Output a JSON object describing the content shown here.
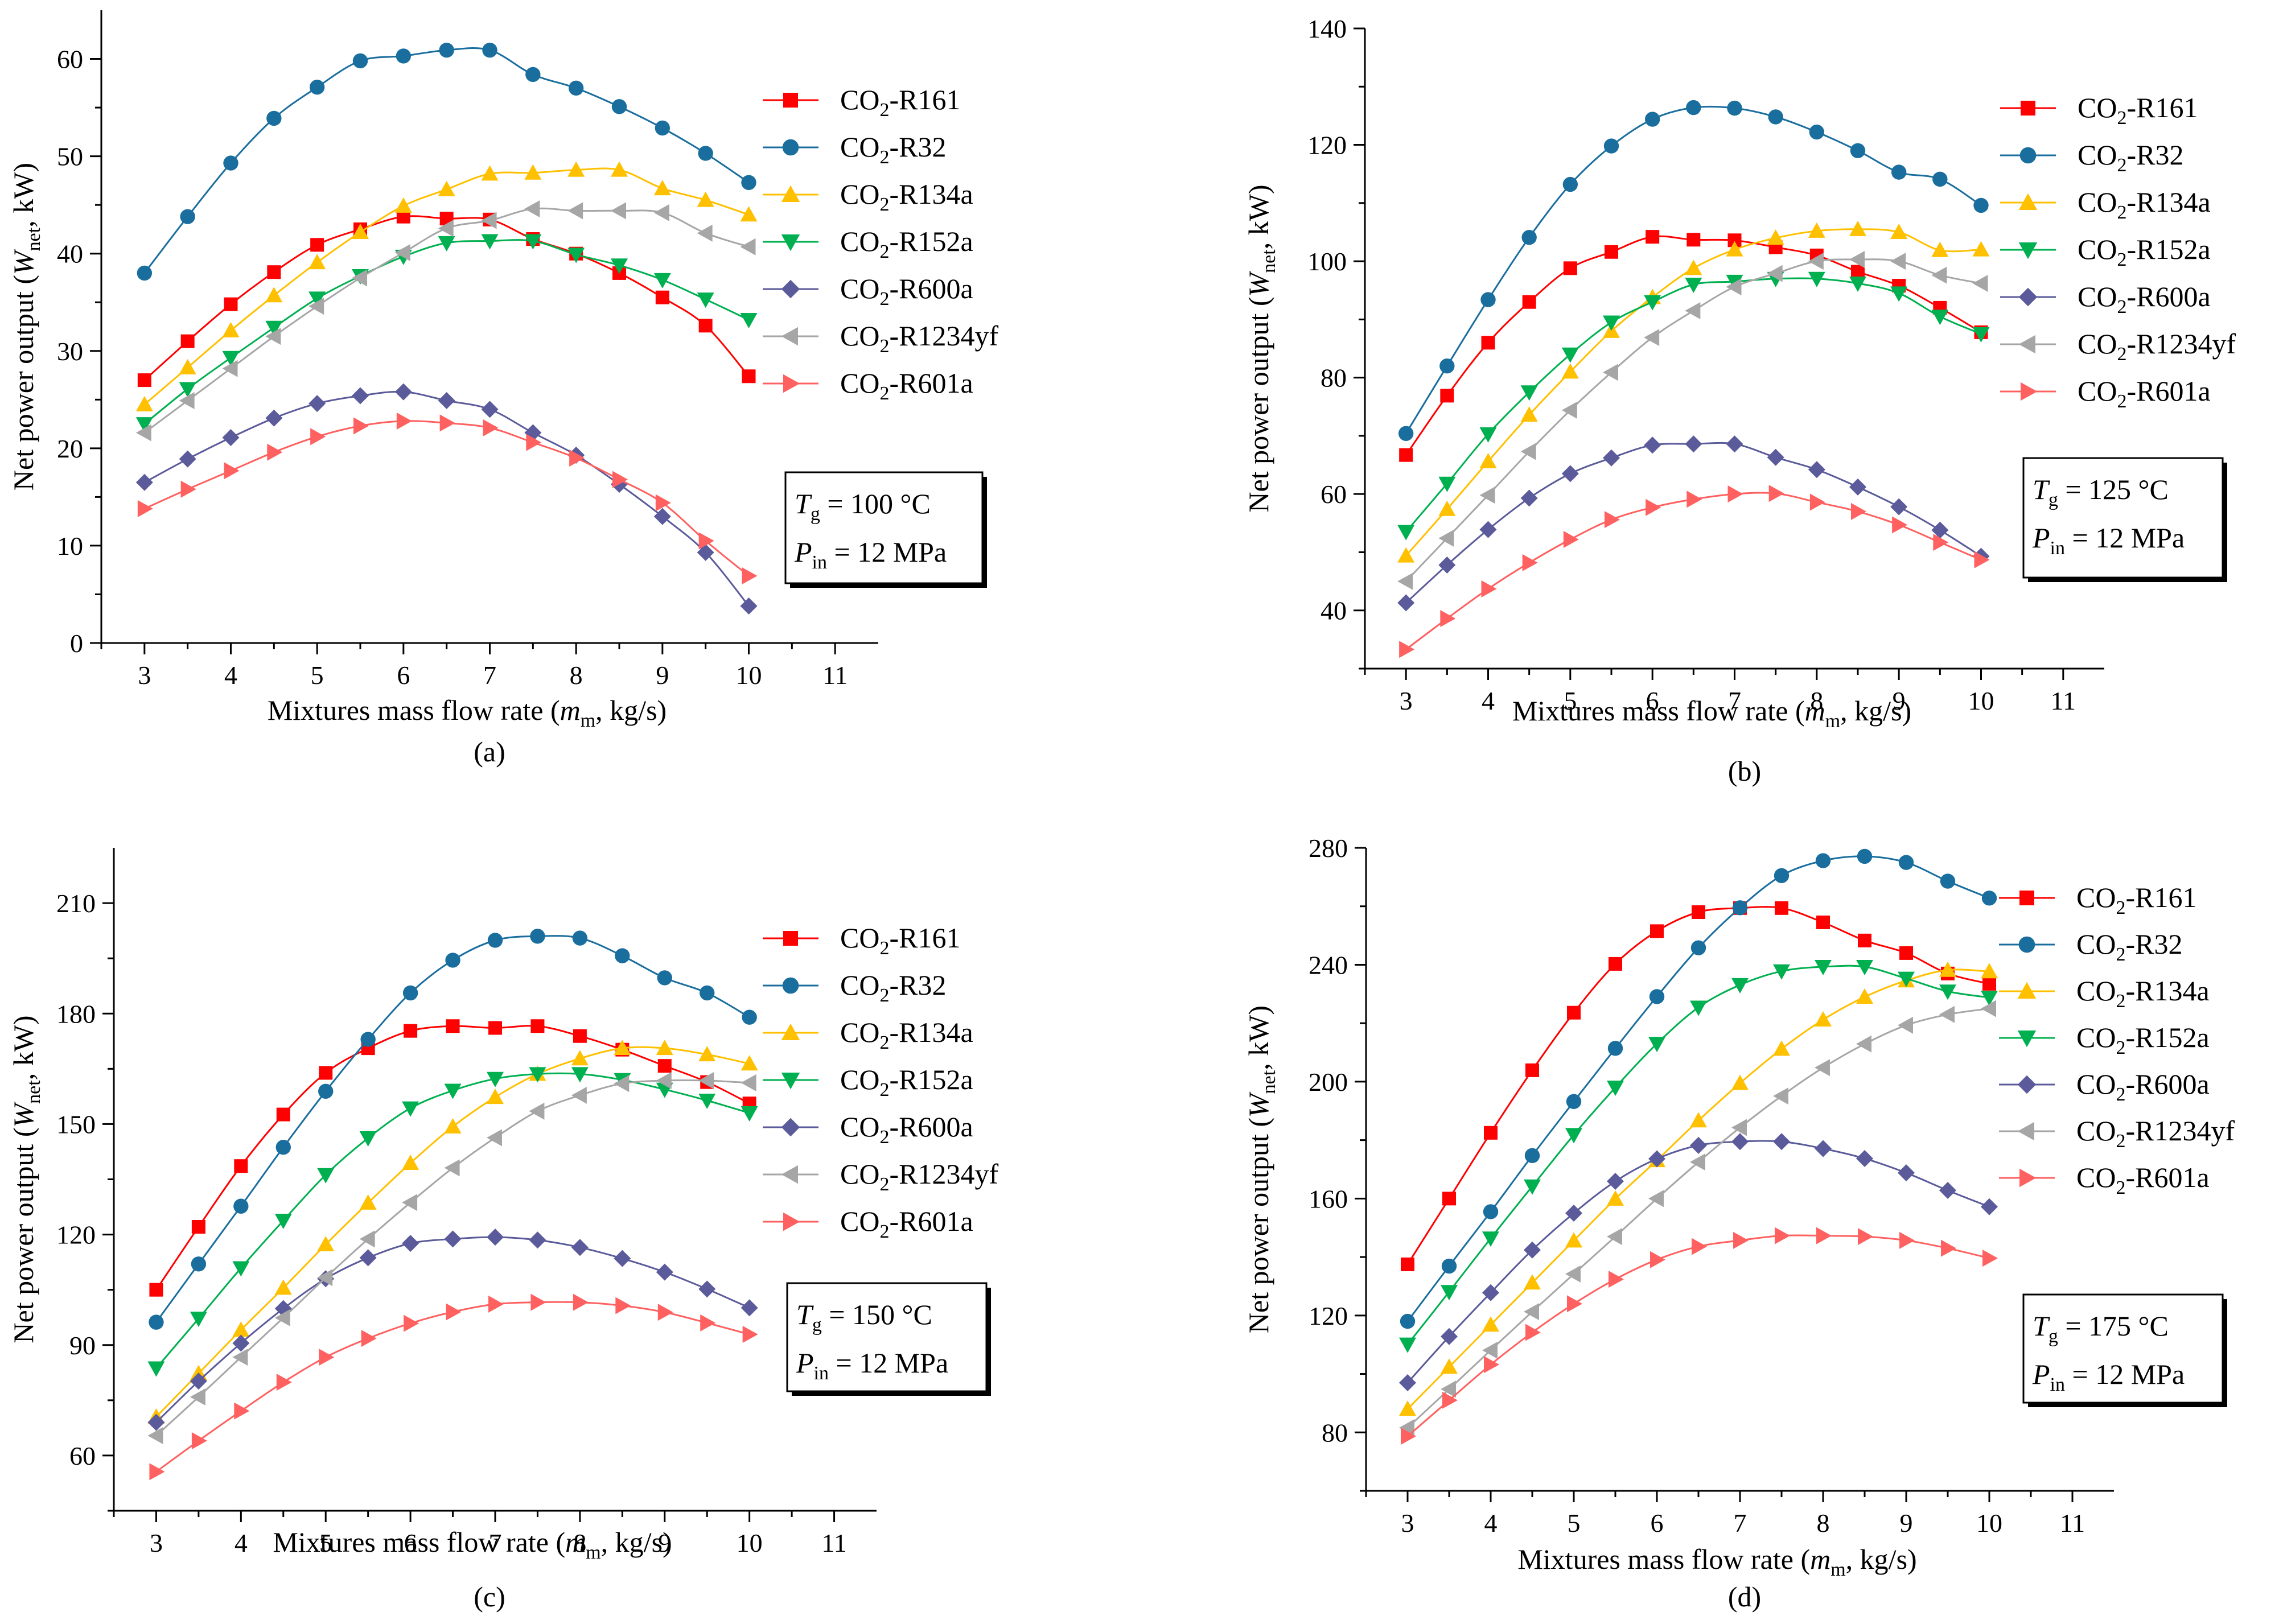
{
  "chart_data": [
    {
      "type": "line",
      "caption": "(a)",
      "xlabel": {
        "main": "Mixtures mass flow rate (",
        "var": "m",
        "sub": "m",
        "rest": ", kg/s)"
      },
      "ylabel": {
        "main": "Net power output (",
        "var": "W",
        "sub": "net",
        "rest": ", kW)"
      },
      "xlim": [
        2.5,
        11.5
      ],
      "ylim": [
        0,
        65
      ],
      "xticks": [
        3,
        4,
        5,
        6,
        7,
        8,
        9,
        10,
        11
      ],
      "yticks": [
        0,
        10,
        20,
        30,
        40,
        50,
        60
      ],
      "x": [
        3,
        3.5,
        4,
        4.5,
        5,
        5.5,
        6,
        6.5,
        7,
        7.5,
        8,
        8.5,
        9,
        9.5,
        10
      ],
      "annotation": {
        "tg_var": "T",
        "tg_sub": "g",
        "tg_text": " = 100 °C",
        "p_var": "P",
        "p_sub": "in",
        "p_text": " = 12 MPa"
      },
      "series": [
        {
          "name_pre": "CO",
          "name_sub": "2",
          "name_post": "-R161",
          "color": "#ff0000",
          "marker": "square",
          "values": [
            27.0,
            31.0,
            34.8,
            38.1,
            40.9,
            42.5,
            43.8,
            43.6,
            43.5,
            41.5,
            40.0,
            38.0,
            35.5,
            32.6,
            27.4
          ]
        },
        {
          "name_pre": "CO",
          "name_sub": "2",
          "name_post": "-R32",
          "color": "#1a6e9e",
          "marker": "circle",
          "values": [
            38.0,
            43.8,
            49.3,
            53.9,
            57.1,
            59.8,
            60.3,
            60.9,
            60.9,
            58.4,
            57.0,
            55.1,
            52.9,
            50.3,
            47.3
          ]
        },
        {
          "name_pre": "CO",
          "name_sub": "2",
          "name_post": "-R134a",
          "color": "#ffc000",
          "marker": "triangle-up",
          "values": [
            24.5,
            28.3,
            32.1,
            35.7,
            39.1,
            42.2,
            44.9,
            46.6,
            48.2,
            48.3,
            48.6,
            48.6,
            46.7,
            45.5,
            44.0
          ]
        },
        {
          "name_pre": "CO",
          "name_sub": "2",
          "name_post": "-R152a",
          "color": "#00b050",
          "marker": "triangle-down",
          "values": [
            22.5,
            26.1,
            29.3,
            32.4,
            35.4,
            37.7,
            39.7,
            41.1,
            41.3,
            41.3,
            39.9,
            38.8,
            37.3,
            35.3,
            33.2
          ]
        },
        {
          "name_pre": "CO",
          "name_sub": "2",
          "name_post": "-R600a",
          "color": "#5b5b9b",
          "marker": "diamond",
          "values": [
            16.5,
            18.9,
            21.1,
            23.1,
            24.6,
            25.4,
            25.8,
            24.9,
            24.0,
            21.6,
            19.3,
            16.3,
            13.0,
            9.3,
            3.8
          ]
        },
        {
          "name_pre": "CO",
          "name_sub": "2",
          "name_post": "-R1234yf",
          "color": "#a6a6a6",
          "marker": "triangle-left",
          "values": [
            21.6,
            24.9,
            28.2,
            31.5,
            34.6,
            37.5,
            40.1,
            42.6,
            43.4,
            44.6,
            44.4,
            44.4,
            44.2,
            42.1,
            40.7
          ]
        },
        {
          "name_pre": "CO",
          "name_sub": "2",
          "name_post": "-R601a",
          "color": "#ff6060",
          "marker": "triangle-right",
          "values": [
            13.8,
            15.8,
            17.7,
            19.6,
            21.2,
            22.3,
            22.8,
            22.6,
            22.1,
            20.6,
            19.0,
            16.8,
            14.4,
            10.5,
            6.9
          ]
        }
      ]
    },
    {
      "type": "line",
      "caption": "(b)",
      "xlabel": {
        "main": "Mixtures mass flow rate (",
        "var": "m",
        "sub": "m",
        "rest": ", kg/s)"
      },
      "ylabel": {
        "main": "Net power output (",
        "var": "W",
        "sub": "net",
        "rest": ", kW)"
      },
      "xlim": [
        2.5,
        11.5
      ],
      "ylim": [
        30,
        140
      ],
      "xticks": [
        3,
        4,
        5,
        6,
        7,
        8,
        9,
        10,
        11
      ],
      "yticks": [
        40,
        60,
        80,
        100,
        120,
        140
      ],
      "x": [
        3,
        3.5,
        4,
        4.5,
        5,
        5.5,
        6,
        6.5,
        7,
        7.5,
        8,
        8.5,
        9,
        9.5,
        10
      ],
      "annotation": {
        "tg_var": "T",
        "tg_sub": "g",
        "tg_text": " = 125 °C",
        "p_var": "P",
        "p_sub": "in",
        "p_text": " = 12 MPa"
      },
      "series": [
        {
          "name_pre": "CO",
          "name_sub": "2",
          "name_post": "-R161",
          "color": "#ff0000",
          "marker": "square",
          "values": [
            66.7,
            76.9,
            86.0,
            93.0,
            98.8,
            101.6,
            104.2,
            103.7,
            103.6,
            102.4,
            101.0,
            98.2,
            95.8,
            92.0,
            87.8
          ]
        },
        {
          "name_pre": "CO",
          "name_sub": "2",
          "name_post": "-R32",
          "color": "#1a6e9e",
          "marker": "circle",
          "values": [
            70.4,
            82.0,
            93.4,
            104.1,
            113.2,
            119.8,
            124.4,
            126.4,
            126.3,
            124.8,
            122.2,
            119.0,
            115.3,
            114.1,
            109.6
          ]
        },
        {
          "name_pre": "CO",
          "name_sub": "2",
          "name_post": "-R134a",
          "color": "#ffc000",
          "marker": "triangle-up",
          "values": [
            49.4,
            57.4,
            65.6,
            73.6,
            81.0,
            88.0,
            93.8,
            98.8,
            102.0,
            104.0,
            105.2,
            105.5,
            105.0,
            101.9,
            102.0
          ]
        },
        {
          "name_pre": "CO",
          "name_sub": "2",
          "name_post": "-R152a",
          "color": "#00b050",
          "marker": "triangle-down",
          "values": [
            53.5,
            61.8,
            70.3,
            77.5,
            84.0,
            89.5,
            93.0,
            96.0,
            96.5,
            97.0,
            97.0,
            96.2,
            94.5,
            90.5,
            87.5
          ]
        },
        {
          "name_pre": "CO",
          "name_sub": "2",
          "name_post": "-R600a",
          "color": "#5b5b9b",
          "marker": "diamond",
          "values": [
            41.3,
            47.8,
            53.9,
            59.3,
            63.5,
            66.2,
            68.4,
            68.6,
            68.6,
            66.3,
            64.2,
            61.2,
            57.8,
            53.8,
            49.3
          ]
        },
        {
          "name_pre": "CO",
          "name_sub": "2",
          "name_post": "-R1234yf",
          "color": "#a6a6a6",
          "marker": "triangle-left",
          "values": [
            45.0,
            52.4,
            59.8,
            67.3,
            74.4,
            80.9,
            86.9,
            91.5,
            95.6,
            97.9,
            100.0,
            100.3,
            100.0,
            97.6,
            96.2
          ]
        },
        {
          "name_pre": "CO",
          "name_sub": "2",
          "name_post": "-R601a",
          "color": "#ff6060",
          "marker": "triangle-right",
          "values": [
            33.3,
            38.6,
            43.7,
            48.2,
            52.2,
            55.6,
            57.7,
            59.1,
            60.0,
            60.1,
            58.6,
            57.0,
            54.7,
            51.7,
            48.7
          ]
        }
      ]
    },
    {
      "type": "line",
      "caption": "(c)",
      "xlabel": {
        "main": "Mixtures mass flow rate (",
        "var": "m",
        "sub": "m",
        "rest": ", kg/s)"
      },
      "ylabel": {
        "main": "Net power output (",
        "var": "W",
        "sub": "net",
        "rest": ", kW)"
      },
      "xlim": [
        2.5,
        11.5
      ],
      "ylim": [
        45,
        225
      ],
      "xticks": [
        3,
        4,
        5,
        6,
        7,
        8,
        9,
        10,
        11
      ],
      "yticks": [
        60,
        90,
        120,
        150,
        180,
        210
      ],
      "x": [
        3,
        3.5,
        4,
        4.5,
        5,
        5.5,
        6,
        6.5,
        7,
        7.5,
        8,
        8.5,
        9,
        9.5,
        10
      ],
      "annotation": {
        "tg_var": "T",
        "tg_sub": "g",
        "tg_text": " = 150 °C",
        "p_var": "P",
        "p_sub": "in",
        "p_text": " = 12 MPa"
      },
      "series": [
        {
          "name_pre": "CO",
          "name_sub": "2",
          "name_post": "-R161",
          "color": "#ff0000",
          "marker": "square",
          "values": [
            105.0,
            122.1,
            138.6,
            152.6,
            163.9,
            170.6,
            175.3,
            176.6,
            176.1,
            176.6,
            173.9,
            170.2,
            165.8,
            161.4,
            155.6
          ]
        },
        {
          "name_pre": "CO",
          "name_sub": "2",
          "name_post": "-R32",
          "color": "#1a6e9e",
          "marker": "circle",
          "values": [
            96.2,
            112.0,
            127.7,
            143.7,
            158.9,
            173.0,
            185.6,
            194.5,
            199.9,
            201.0,
            200.5,
            195.7,
            189.7,
            185.6,
            179.0
          ]
        },
        {
          "name_pre": "CO",
          "name_sub": "2",
          "name_post": "-R134a",
          "color": "#ffc000",
          "marker": "triangle-up",
          "values": [
            70.5,
            82.3,
            94.1,
            105.5,
            117.3,
            128.6,
            139.4,
            149.3,
            157.3,
            163.6,
            167.8,
            170.6,
            170.6,
            168.9,
            166.4
          ]
        },
        {
          "name_pre": "CO",
          "name_sub": "2",
          "name_post": "-R152a",
          "color": "#00b050",
          "marker": "triangle-down",
          "values": [
            83.7,
            97.2,
            110.9,
            123.8,
            136.2,
            146.2,
            154.3,
            159.1,
            162.3,
            163.6,
            163.6,
            162.0,
            159.4,
            156.4,
            153.0
          ]
        },
        {
          "name_pre": "CO",
          "name_sub": "2",
          "name_post": "-R600a",
          "color": "#5b5b9b",
          "marker": "diamond",
          "values": [
            69.0,
            80.2,
            90.5,
            99.9,
            108.0,
            113.7,
            117.6,
            118.8,
            119.3,
            118.5,
            116.5,
            113.5,
            109.8,
            105.2,
            100.1
          ]
        },
        {
          "name_pre": "CO",
          "name_sub": "2",
          "name_post": "-R1234yf",
          "color": "#a6a6a6",
          "marker": "triangle-left",
          "values": [
            65.4,
            75.9,
            86.7,
            97.4,
            108.3,
            118.8,
            128.7,
            138.1,
            146.3,
            153.5,
            157.8,
            161.0,
            161.8,
            161.8,
            161.2
          ]
        },
        {
          "name_pre": "CO",
          "name_sub": "2",
          "name_post": "-R601a",
          "color": "#ff6060",
          "marker": "triangle-right",
          "values": [
            55.6,
            64.0,
            72.1,
            79.9,
            86.7,
            91.8,
            95.9,
            99.0,
            101.1,
            101.6,
            101.6,
            100.7,
            98.9,
            96.0,
            92.9
          ]
        }
      ]
    },
    {
      "type": "line",
      "caption": "(d)",
      "xlabel": {
        "main": "Mixtures mass flow rate (",
        "var": "m",
        "sub": "m",
        "rest": ", kg/s)"
      },
      "ylabel": {
        "main": "Net power output (",
        "var": "W",
        "sub": "net",
        "rest": ", kW)"
      },
      "xlim": [
        2.5,
        11.5
      ],
      "ylim": [
        60,
        280
      ],
      "xticks": [
        3,
        4,
        5,
        6,
        7,
        8,
        9,
        10,
        11
      ],
      "yticks": [
        80,
        120,
        160,
        200,
        240,
        280
      ],
      "x": [
        3,
        3.5,
        4,
        4.5,
        5,
        5.5,
        6,
        6.5,
        7,
        7.5,
        8,
        8.5,
        9,
        9.5,
        10
      ],
      "annotation": {
        "tg_var": "T",
        "tg_sub": "g",
        "tg_text": " = 175 °C",
        "p_var": "P",
        "p_sub": "in",
        "p_text": " = 12 MPa"
      },
      "series": [
        {
          "name_pre": "CO",
          "name_sub": "2",
          "name_post": "-R161",
          "color": "#ff0000",
          "marker": "square",
          "values": [
            137.5,
            160.0,
            182.5,
            203.9,
            223.6,
            240.3,
            251.5,
            258.0,
            259.4,
            259.4,
            254.5,
            248.3,
            244.0,
            237.0,
            233.5
          ]
        },
        {
          "name_pre": "CO",
          "name_sub": "2",
          "name_post": "-R32",
          "color": "#1a6e9e",
          "marker": "circle",
          "values": [
            118.0,
            136.9,
            155.5,
            174.7,
            193.2,
            211.4,
            229.1,
            245.8,
            259.5,
            270.5,
            275.6,
            277.1,
            275.0,
            268.6,
            262.8
          ]
        },
        {
          "name_pre": "CO",
          "name_sub": "2",
          "name_post": "-R134a",
          "color": "#ffc000",
          "marker": "triangle-up",
          "values": [
            88.0,
            102.4,
            116.8,
            131.2,
            145.6,
            159.9,
            173.1,
            186.7,
            199.5,
            211.2,
            221.2,
            229.0,
            234.6,
            238.2,
            237.7
          ]
        },
        {
          "name_pre": "CO",
          "name_sub": "2",
          "name_post": "-R152a",
          "color": "#00b050",
          "marker": "triangle-down",
          "values": [
            110.1,
            128.1,
            146.4,
            164.2,
            181.8,
            198.0,
            213.0,
            225.4,
            233.1,
            237.8,
            239.3,
            239.3,
            235.3,
            230.9,
            228.8
          ]
        },
        {
          "name_pre": "CO",
          "name_sub": "2",
          "name_post": "-R600a",
          "color": "#5b5b9b",
          "marker": "diamond",
          "values": [
            97.0,
            112.8,
            127.8,
            142.4,
            155.0,
            165.9,
            173.6,
            178.2,
            179.5,
            179.5,
            177.1,
            173.7,
            168.8,
            162.8,
            157.2
          ]
        },
        {
          "name_pre": "CO",
          "name_sub": "2",
          "name_post": "-R1234yf",
          "color": "#a6a6a6",
          "marker": "triangle-left",
          "values": [
            81.6,
            94.8,
            108.1,
            121.3,
            134.2,
            147.0,
            160.0,
            172.5,
            184.3,
            195.1,
            204.8,
            212.9,
            219.3,
            223.0,
            225.0
          ]
        },
        {
          "name_pre": "CO",
          "name_sub": "2",
          "name_post": "-R601a",
          "color": "#ff6060",
          "marker": "triangle-right",
          "values": [
            78.7,
            91.0,
            103.2,
            114.2,
            124.0,
            132.4,
            139.1,
            143.6,
            145.7,
            147.3,
            147.3,
            147.0,
            145.7,
            143.0,
            139.6
          ]
        }
      ]
    }
  ]
}
